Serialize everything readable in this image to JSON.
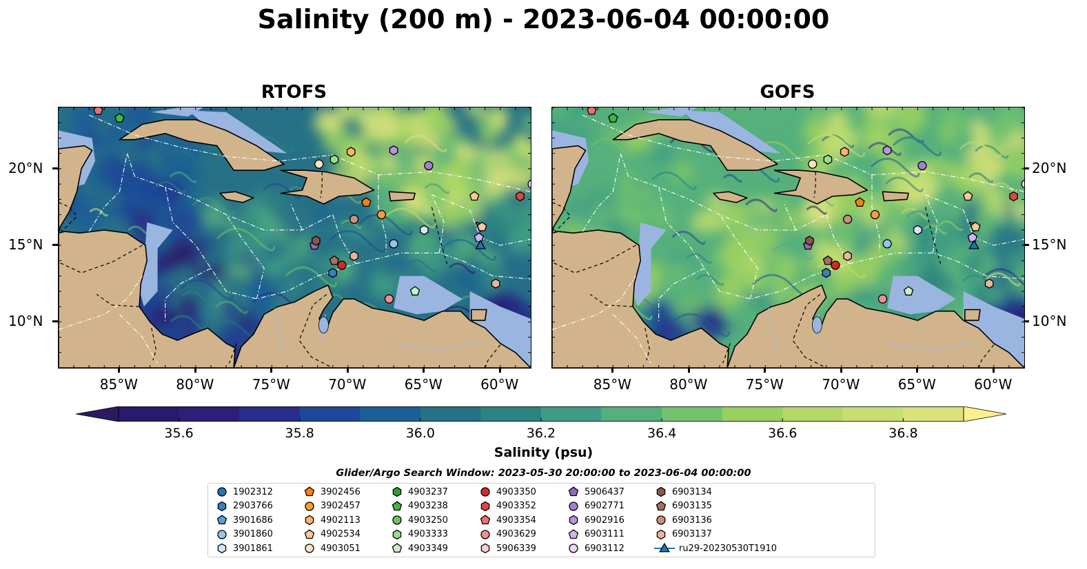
{
  "figure": {
    "title": "Salinity (200 m) - 2023-06-04 00:00:00",
    "subtitle": "Glider/Argo Search Window: 2023-05-30 20:00:00 to 2023-06-04 00:00:00"
  },
  "map_data": {
    "extent": {
      "lon": [
        -89,
        -58
      ],
      "lat": [
        7,
        24
      ]
    },
    "panels": [
      {
        "id": "rtofs",
        "title": "RTOFS",
        "tone": "fresher"
      },
      {
        "id": "gofs",
        "title": "GOFS",
        "tone": "saltier"
      }
    ],
    "lon_ticks": [
      {
        "value": -85,
        "label": "85°W"
      },
      {
        "value": -80,
        "label": "80°W"
      },
      {
        "value": -75,
        "label": "75°W"
      },
      {
        "value": -70,
        "label": "70°W"
      },
      {
        "value": -65,
        "label": "65°W"
      },
      {
        "value": -60,
        "label": "60°W"
      }
    ],
    "lat_ticks": [
      {
        "value": 20,
        "label": "20°N"
      },
      {
        "value": 15,
        "label": "15°N"
      },
      {
        "value": 10,
        "label": "10°N"
      }
    ],
    "colors": {
      "land": "#d2b48c",
      "shelf": "#9ab6e0",
      "coastline": "#000000",
      "borders": "#000000",
      "eez": "#ffffff",
      "rivers": "#a8b8cf"
    }
  },
  "colorbar": {
    "label": "Salinity (psu)",
    "min": 35.5,
    "max": 36.9,
    "ticks": [
      {
        "value": 35.6,
        "label": "35.6"
      },
      {
        "value": 35.8,
        "label": "35.8"
      },
      {
        "value": 36.0,
        "label": "36.0"
      },
      {
        "value": 36.2,
        "label": "36.2"
      },
      {
        "value": 36.4,
        "label": "36.4"
      },
      {
        "value": 36.6,
        "label": "36.6"
      },
      {
        "value": 36.8,
        "label": "36.8"
      }
    ],
    "extend_low_color": "#2b1a60",
    "extend_high_color": "#fdf08e",
    "colors": [
      "#2a1c6b",
      "#262e8a",
      "#1f4797",
      "#1b5f95",
      "#277187",
      "#2d8380",
      "#3e9b84",
      "#55b07c",
      "#72c26e",
      "#99d061",
      "#c2dd6e",
      "#dbe27b"
    ]
  },
  "platforms": [
    {
      "id": "1902312",
      "marker": "circle",
      "color": "#1f77b4",
      "lon": null,
      "lat": null
    },
    {
      "id": "2903766",
      "marker": "hexagon",
      "color": "#3a80bb",
      "lon": null,
      "lat": null
    },
    {
      "id": "3901686",
      "marker": "pentagon",
      "color": "#5b9fd6",
      "lon": null,
      "lat": null
    },
    {
      "id": "3901860",
      "marker": "circle",
      "color": "#94c4ec",
      "lon": -67,
      "lat": 15.1
    },
    {
      "id": "3901861",
      "marker": "hexagon",
      "color": "#d2e7f7",
      "lon": -65,
      "lat": 16.0
    },
    {
      "id": "3902456",
      "marker": "pentagon",
      "color": "#ff7f0e",
      "lon": -68.8,
      "lat": 17.8
    },
    {
      "id": "3902457",
      "marker": "circle",
      "color": "#ff9a3c",
      "lon": -67.8,
      "lat": 17.0
    },
    {
      "id": "4902113",
      "marker": "hexagon",
      "color": "#ffb36b",
      "lon": -69.8,
      "lat": 21.1
    },
    {
      "id": "4902534",
      "marker": "pentagon",
      "color": "#ffc99a",
      "lon": -61.7,
      "lat": 18.2
    },
    {
      "id": "4903051",
      "marker": "circle",
      "color": "#ffe2c4",
      "lon": -71.9,
      "lat": 20.3
    },
    {
      "id": "4903237",
      "marker": "hexagon",
      "color": "#2ca02c",
      "lon": null,
      "lat": null
    },
    {
      "id": "4903238",
      "marker": "pentagon",
      "color": "#44b444",
      "lon": -85.0,
      "lat": 23.3
    },
    {
      "id": "4903250",
      "marker": "circle",
      "color": "#66c766",
      "lon": null,
      "lat": null
    },
    {
      "id": "4903333",
      "marker": "hexagon",
      "color": "#98dc8e",
      "lon": -70.9,
      "lat": 20.6
    },
    {
      "id": "4903349",
      "marker": "pentagon",
      "color": "#c9f0c2",
      "lon": -65.6,
      "lat": 12.0
    },
    {
      "id": "4903350",
      "marker": "circle",
      "color": "#d62728",
      "lon": -70.4,
      "lat": 13.7
    },
    {
      "id": "4903352",
      "marker": "hexagon",
      "color": "#e04545",
      "lon": -58.7,
      "lat": 18.2
    },
    {
      "id": "4903354",
      "marker": "pentagon",
      "color": "#ee6e6e",
      "lon": -86.4,
      "lat": 23.8
    },
    {
      "id": "4903629",
      "marker": "circle",
      "color": "#f28e8e",
      "lon": -67.3,
      "lat": 11.5
    },
    {
      "id": "5906339",
      "marker": "hexagon",
      "color": "#fcd0d0",
      "lon": null,
      "lat": null
    },
    {
      "id": "5906437",
      "marker": "pentagon",
      "color": "#9467bd",
      "lon": -72.2,
      "lat": 15.0
    },
    {
      "id": "6902771",
      "marker": "circle",
      "color": "#a57fd0",
      "lon": -64.7,
      "lat": 20.2
    },
    {
      "id": "6902916",
      "marker": "hexagon",
      "color": "#b895dc",
      "lon": -67.0,
      "lat": 21.2
    },
    {
      "id": "6903111",
      "marker": "pentagon",
      "color": "#d0b4ee",
      "lon": -61.4,
      "lat": 15.5
    },
    {
      "id": "6903112",
      "marker": "circle",
      "color": "#ecd4f7",
      "lon": -57.9,
      "lat": 19.0
    },
    {
      "id": "6903134",
      "marker": "hexagon",
      "color": "#8c564b",
      "lon": -72.1,
      "lat": 15.3
    },
    {
      "id": "6903135",
      "marker": "pentagon",
      "color": "#a86e5e",
      "lon": -70.9,
      "lat": 14.0
    },
    {
      "id": "6903136",
      "marker": "circle",
      "color": "#c8907d",
      "lon": -69.6,
      "lat": 16.7
    },
    {
      "id": "6903137",
      "marker": "hexagon",
      "color": "#ecb49c",
      "lon": -69.6,
      "lat": 14.3
    },
    {
      "id": "ru29-20230530T1910",
      "marker": "triangle-line",
      "color": "#1f77b4",
      "lon": -61.3,
      "lat": 15.0
    }
  ],
  "extra_markers": [
    {
      "marker": "hexagon",
      "color": "#ecb49c",
      "lon": -60.3,
      "lat": 12.5
    },
    {
      "marker": "hexagon",
      "color": "#3a80bb",
      "lon": -71.0,
      "lat": 13.2
    },
    {
      "marker": "pentagon",
      "color": "#ffc99a",
      "lon": -61.2,
      "lat": 16.2
    }
  ]
}
